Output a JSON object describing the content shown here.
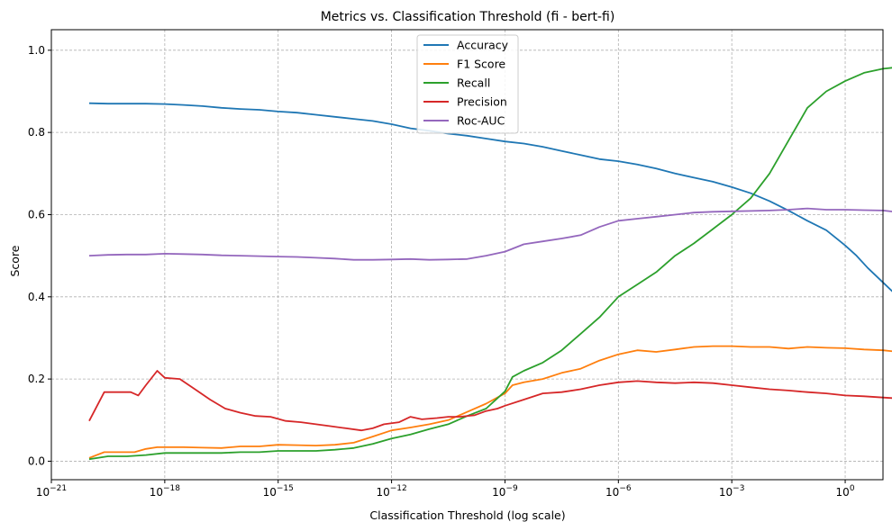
{
  "chart_data": {
    "type": "line",
    "title": "Metrics vs. Classification Threshold (fi - bert-fi)",
    "xlabel": "Classification Threshold (log scale)",
    "ylabel": "Score",
    "xscale": "log",
    "xlim": [
      1e-21,
      10.0
    ],
    "ylim": [
      -0.045,
      1.05
    ],
    "grid": true,
    "legend_position": "top-center",
    "xtick_labels": [
      {
        "base": "10",
        "exp": "−21",
        "value": 1e-21
      },
      {
        "base": "10",
        "exp": "−18",
        "value": 1e-18
      },
      {
        "base": "10",
        "exp": "−15",
        "value": 1e-15
      },
      {
        "base": "10",
        "exp": "−12",
        "value": 1e-12
      },
      {
        "base": "10",
        "exp": "−9",
        "value": 1e-09
      },
      {
        "base": "10",
        "exp": "−6",
        "value": 1e-06
      },
      {
        "base": "10",
        "exp": "−3",
        "value": 0.001
      },
      {
        "base": "10",
        "exp": "0",
        "value": 1
      }
    ],
    "yticks": [
      0.0,
      0.2,
      0.4,
      0.6,
      0.8,
      1.0
    ],
    "ytick_labels": [
      "0.0",
      "0.2",
      "0.4",
      "0.6",
      "0.8",
      "1.0"
    ],
    "series": [
      {
        "name": "Accuracy",
        "color": "#1f77b4",
        "points": [
          [
            -20,
            0.871
          ],
          [
            -19.5,
            0.87
          ],
          [
            -19,
            0.87
          ],
          [
            -18.5,
            0.87
          ],
          [
            -18,
            0.869
          ],
          [
            -17.5,
            0.867
          ],
          [
            -17,
            0.864
          ],
          [
            -16.5,
            0.86
          ],
          [
            -16,
            0.857
          ],
          [
            -15.5,
            0.855
          ],
          [
            -15,
            0.851
          ],
          [
            -14.5,
            0.848
          ],
          [
            -14,
            0.843
          ],
          [
            -13.5,
            0.838
          ],
          [
            -13,
            0.833
          ],
          [
            -12.5,
            0.828
          ],
          [
            -12,
            0.82
          ],
          [
            -11.5,
            0.81
          ],
          [
            -11,
            0.804
          ],
          [
            -10.5,
            0.797
          ],
          [
            -10,
            0.792
          ],
          [
            -9.5,
            0.785
          ],
          [
            -9,
            0.778
          ],
          [
            -8.5,
            0.773
          ],
          [
            -8,
            0.765
          ],
          [
            -7.5,
            0.755
          ],
          [
            -7,
            0.745
          ],
          [
            -6.5,
            0.735
          ],
          [
            -6,
            0.73
          ],
          [
            -5.5,
            0.722
          ],
          [
            -5,
            0.712
          ],
          [
            -4.5,
            0.7
          ],
          [
            -4,
            0.69
          ],
          [
            -3.5,
            0.68
          ],
          [
            -3,
            0.667
          ],
          [
            -2.5,
            0.652
          ],
          [
            -2,
            0.633
          ],
          [
            -1.5,
            0.61
          ],
          [
            -1,
            0.585
          ],
          [
            -0.5,
            0.562
          ],
          [
            -0.2,
            0.54
          ],
          [
            0,
            0.525
          ],
          [
            0.3,
            0.5
          ],
          [
            0.6,
            0.47
          ],
          [
            1.0,
            0.435
          ],
          [
            1.4,
            0.4
          ],
          [
            1.8,
            0.37
          ],
          [
            2.2,
            0.34
          ],
          [
            2.6,
            0.32
          ],
          [
            2.85,
            0.278
          ],
          [
            3.0,
            0.125
          ]
        ]
      },
      {
        "name": "F1 Score",
        "color": "#ff7f0e",
        "points": [
          [
            -20,
            0.008
          ],
          [
            -19.6,
            0.022
          ],
          [
            -19.2,
            0.022
          ],
          [
            -18.8,
            0.022
          ],
          [
            -18.5,
            0.03
          ],
          [
            -18.2,
            0.034
          ],
          [
            -17.5,
            0.034
          ],
          [
            -17,
            0.033
          ],
          [
            -16.5,
            0.032
          ],
          [
            -16,
            0.036
          ],
          [
            -15.5,
            0.036
          ],
          [
            -15,
            0.04
          ],
          [
            -14.5,
            0.039
          ],
          [
            -14,
            0.038
          ],
          [
            -13.5,
            0.04
          ],
          [
            -13,
            0.045
          ],
          [
            -12.5,
            0.06
          ],
          [
            -12,
            0.075
          ],
          [
            -11.5,
            0.082
          ],
          [
            -11,
            0.09
          ],
          [
            -10.5,
            0.1
          ],
          [
            -10,
            0.12
          ],
          [
            -9.5,
            0.14
          ],
          [
            -9,
            0.165
          ],
          [
            -8.8,
            0.185
          ],
          [
            -8.5,
            0.192
          ],
          [
            -8,
            0.2
          ],
          [
            -7.5,
            0.215
          ],
          [
            -7,
            0.225
          ],
          [
            -6.5,
            0.245
          ],
          [
            -6,
            0.26
          ],
          [
            -5.5,
            0.27
          ],
          [
            -5,
            0.266
          ],
          [
            -4.5,
            0.272
          ],
          [
            -4,
            0.278
          ],
          [
            -3.5,
            0.28
          ],
          [
            -3,
            0.28
          ],
          [
            -2.5,
            0.278
          ],
          [
            -2,
            0.278
          ],
          [
            -1.5,
            0.274
          ],
          [
            -1,
            0.278
          ],
          [
            -0.5,
            0.276
          ],
          [
            0,
            0.275
          ],
          [
            0.5,
            0.272
          ],
          [
            1,
            0.27
          ],
          [
            1.5,
            0.265
          ],
          [
            2,
            0.262
          ],
          [
            2.5,
            0.256
          ],
          [
            2.85,
            0.245
          ],
          [
            3.0,
            0.222
          ]
        ]
      },
      {
        "name": "Recall",
        "color": "#2ca02c",
        "points": [
          [
            -20,
            0.005
          ],
          [
            -19.5,
            0.012
          ],
          [
            -19,
            0.012
          ],
          [
            -18.5,
            0.015
          ],
          [
            -18,
            0.02
          ],
          [
            -17.5,
            0.02
          ],
          [
            -17,
            0.02
          ],
          [
            -16.5,
            0.02
          ],
          [
            -16,
            0.022
          ],
          [
            -15.5,
            0.022
          ],
          [
            -15,
            0.025
          ],
          [
            -14.5,
            0.025
          ],
          [
            -14,
            0.025
          ],
          [
            -13.5,
            0.028
          ],
          [
            -13,
            0.032
          ],
          [
            -12.5,
            0.042
          ],
          [
            -12,
            0.055
          ],
          [
            -11.5,
            0.065
          ],
          [
            -11,
            0.078
          ],
          [
            -10.5,
            0.09
          ],
          [
            -10,
            0.11
          ],
          [
            -9.5,
            0.128
          ],
          [
            -9,
            0.17
          ],
          [
            -8.8,
            0.205
          ],
          [
            -8.5,
            0.22
          ],
          [
            -8,
            0.24
          ],
          [
            -7.5,
            0.27
          ],
          [
            -7,
            0.31
          ],
          [
            -6.5,
            0.35
          ],
          [
            -6,
            0.4
          ],
          [
            -5.5,
            0.43
          ],
          [
            -5,
            0.46
          ],
          [
            -4.5,
            0.5
          ],
          [
            -4,
            0.53
          ],
          [
            -3.5,
            0.565
          ],
          [
            -3,
            0.6
          ],
          [
            -2.5,
            0.64
          ],
          [
            -2,
            0.7
          ],
          [
            -1.5,
            0.78
          ],
          [
            -1,
            0.86
          ],
          [
            -0.5,
            0.9
          ],
          [
            0,
            0.925
          ],
          [
            0.5,
            0.945
          ],
          [
            1,
            0.955
          ],
          [
            1.5,
            0.96
          ],
          [
            2,
            0.965
          ],
          [
            2.5,
            0.975
          ],
          [
            2.85,
            0.985
          ],
          [
            3.0,
            1.0
          ]
        ]
      },
      {
        "name": "Precision",
        "color": "#d62728",
        "points": [
          [
            -20,
            0.098
          ],
          [
            -19.6,
            0.168
          ],
          [
            -19.2,
            0.168
          ],
          [
            -18.9,
            0.168
          ],
          [
            -18.7,
            0.16
          ],
          [
            -18.5,
            0.185
          ],
          [
            -18.2,
            0.22
          ],
          [
            -18,
            0.203
          ],
          [
            -17.6,
            0.2
          ],
          [
            -17.2,
            0.175
          ],
          [
            -16.8,
            0.15
          ],
          [
            -16.4,
            0.128
          ],
          [
            -16,
            0.118
          ],
          [
            -15.6,
            0.11
          ],
          [
            -15.2,
            0.108
          ],
          [
            -14.8,
            0.098
          ],
          [
            -14.4,
            0.095
          ],
          [
            -14,
            0.09
          ],
          [
            -13.6,
            0.085
          ],
          [
            -13.2,
            0.08
          ],
          [
            -12.8,
            0.075
          ],
          [
            -12.5,
            0.08
          ],
          [
            -12.2,
            0.09
          ],
          [
            -11.8,
            0.095
          ],
          [
            -11.5,
            0.108
          ],
          [
            -11.2,
            0.102
          ],
          [
            -10.8,
            0.105
          ],
          [
            -10.5,
            0.108
          ],
          [
            -10.2,
            0.108
          ],
          [
            -9.8,
            0.112
          ],
          [
            -9.5,
            0.122
          ],
          [
            -9.2,
            0.128
          ],
          [
            -9,
            0.135
          ],
          [
            -8.5,
            0.15
          ],
          [
            -8,
            0.165
          ],
          [
            -7.5,
            0.168
          ],
          [
            -7,
            0.175
          ],
          [
            -6.5,
            0.185
          ],
          [
            -6,
            0.192
          ],
          [
            -5.5,
            0.195
          ],
          [
            -5,
            0.192
          ],
          [
            -4.5,
            0.19
          ],
          [
            -4,
            0.192
          ],
          [
            -3.5,
            0.19
          ],
          [
            -3,
            0.185
          ],
          [
            -2.5,
            0.18
          ],
          [
            -2,
            0.175
          ],
          [
            -1.5,
            0.172
          ],
          [
            -1,
            0.168
          ],
          [
            -0.5,
            0.165
          ],
          [
            0,
            0.16
          ],
          [
            0.5,
            0.158
          ],
          [
            1,
            0.155
          ],
          [
            1.5,
            0.152
          ],
          [
            2,
            0.15
          ],
          [
            2.5,
            0.145
          ],
          [
            2.85,
            0.14
          ],
          [
            3.0,
            0.123
          ]
        ]
      },
      {
        "name": "Roc-AUC",
        "color": "#9467bd",
        "points": [
          [
            -20,
            0.5
          ],
          [
            -19.5,
            0.502
          ],
          [
            -19,
            0.503
          ],
          [
            -18.5,
            0.503
          ],
          [
            -18,
            0.505
          ],
          [
            -17.5,
            0.504
          ],
          [
            -17,
            0.503
          ],
          [
            -16.5,
            0.501
          ],
          [
            -16,
            0.5
          ],
          [
            -15.5,
            0.499
          ],
          [
            -15,
            0.498
          ],
          [
            -14.5,
            0.497
          ],
          [
            -14,
            0.495
          ],
          [
            -13.5,
            0.493
          ],
          [
            -13,
            0.49
          ],
          [
            -12.5,
            0.49
          ],
          [
            -12,
            0.491
          ],
          [
            -11.5,
            0.492
          ],
          [
            -11,
            0.49
          ],
          [
            -10.5,
            0.491
          ],
          [
            -10,
            0.492
          ],
          [
            -9.5,
            0.5
          ],
          [
            -9,
            0.51
          ],
          [
            -8.5,
            0.528
          ],
          [
            -8,
            0.535
          ],
          [
            -7.5,
            0.542
          ],
          [
            -7,
            0.55
          ],
          [
            -6.5,
            0.57
          ],
          [
            -6,
            0.585
          ],
          [
            -5.5,
            0.59
          ],
          [
            -5,
            0.595
          ],
          [
            -4.5,
            0.6
          ],
          [
            -4,
            0.605
          ],
          [
            -3.5,
            0.607
          ],
          [
            -3,
            0.608
          ],
          [
            -2.5,
            0.609
          ],
          [
            -2,
            0.61
          ],
          [
            -1.5,
            0.612
          ],
          [
            -1,
            0.615
          ],
          [
            -0.5,
            0.612
          ],
          [
            0,
            0.612
          ],
          [
            0.5,
            0.611
          ],
          [
            1,
            0.61
          ],
          [
            1.5,
            0.605
          ],
          [
            2,
            0.598
          ],
          [
            2.5,
            0.59
          ],
          [
            2.85,
            0.57
          ],
          [
            3.0,
            0.5
          ]
        ]
      }
    ]
  }
}
